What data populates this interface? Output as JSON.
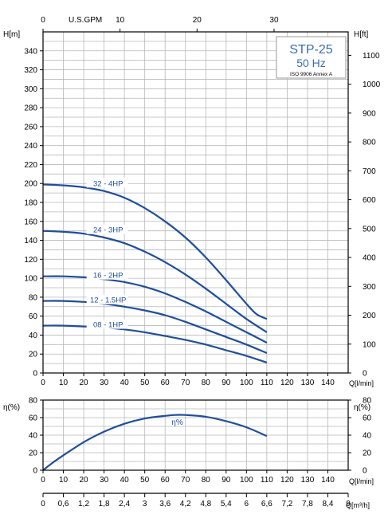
{
  "colors": {
    "curve": "#1f4e9c",
    "grid": "#b8b8b8",
    "axis": "#000000",
    "box_text": "#3a6cb5"
  },
  "info_box": {
    "model": "STP-25",
    "freq": "50 Hz",
    "standard": "ISO 9906 Annex A"
  },
  "chart_data": [
    {
      "type": "line",
      "panel": "head",
      "ylabel_left": "H[m]",
      "ylabel_right": "H[ft]",
      "xlabel": "Q[l/min]",
      "top_axis_label": "U.S.GPM",
      "xlim": [
        0,
        150
      ],
      "ylim": [
        0,
        360
      ],
      "x_ticks": [
        0,
        10,
        20,
        30,
        40,
        50,
        60,
        70,
        80,
        90,
        100,
        110,
        120,
        130,
        140
      ],
      "y_ticks": [
        0,
        20,
        40,
        60,
        80,
        100,
        120,
        140,
        160,
        180,
        200,
        220,
        240,
        260,
        280,
        300,
        320,
        340
      ],
      "gpm_ticks": [
        0,
        10,
        20,
        30
      ],
      "ft_ticks": [
        0,
        100,
        200,
        300,
        400,
        500,
        600,
        700,
        800,
        900,
        1000,
        1100
      ],
      "grid": true,
      "series": [
        {
          "name": "32 - 4HP",
          "x": [
            0,
            10,
            20,
            30,
            40,
            50,
            60,
            70,
            80,
            90,
            100,
            105,
            110
          ],
          "values": [
            199,
            198,
            196,
            192,
            185,
            174,
            160,
            143,
            122,
            98,
            73,
            62,
            57
          ]
        },
        {
          "name": "24 - 3HP",
          "x": [
            0,
            10,
            20,
            30,
            40,
            50,
            60,
            70,
            80,
            90,
            100,
            110
          ],
          "values": [
            150,
            149,
            147,
            143,
            137,
            128,
            117,
            104,
            89,
            73,
            57,
            43
          ]
        },
        {
          "name": "16 - 2HP",
          "x": [
            0,
            10,
            20,
            30,
            40,
            50,
            60,
            70,
            80,
            90,
            100,
            110
          ],
          "values": [
            102,
            102,
            101,
            99,
            96,
            91,
            84,
            75,
            65,
            54,
            43,
            32
          ]
        },
        {
          "name": "12 - 1.5HP",
          "x": [
            0,
            10,
            20,
            30,
            40,
            50,
            60,
            70,
            80,
            90,
            100,
            110
          ],
          "values": [
            76,
            76,
            75,
            73,
            70,
            66,
            61,
            54,
            46,
            38,
            30,
            21
          ]
        },
        {
          "name": "08 - 1HP",
          "x": [
            0,
            10,
            20,
            30,
            40,
            50,
            60,
            70,
            80,
            90,
            100,
            110
          ],
          "values": [
            50,
            50,
            49,
            48,
            46,
            43,
            39,
            35,
            30,
            24,
            18,
            11
          ]
        }
      ]
    },
    {
      "type": "line",
      "panel": "efficiency",
      "ylabel_left": "η(%)",
      "ylabel_right": "η(%)",
      "xlabel": "Q[l/min]",
      "xlim": [
        0,
        150
      ],
      "ylim": [
        0,
        80
      ],
      "x_ticks": [
        0,
        10,
        20,
        30,
        40,
        50,
        60,
        70,
        80,
        90,
        100,
        110,
        120,
        130,
        140
      ],
      "y_ticks": [
        0,
        20,
        40,
        60,
        80
      ],
      "grid": true,
      "series": [
        {
          "name": "η%",
          "x": [
            0,
            5,
            10,
            20,
            30,
            40,
            50,
            60,
            65,
            70,
            80,
            90,
            100,
            110
          ],
          "values": [
            0,
            9,
            17,
            32,
            44,
            53,
            59,
            62,
            63,
            63,
            61,
            56,
            49,
            39
          ]
        }
      ]
    },
    {
      "type": "axis",
      "panel": "flow_m3h",
      "xlabel": "Q[m³/h]",
      "xlim": [
        0,
        9
      ],
      "tick_labels": [
        "0",
        "0,6",
        "1,2",
        "1,8",
        "2,4",
        "3",
        "3,6",
        "4,2",
        "4,8",
        "5,4",
        "6",
        "6,6",
        "7,2",
        "7,8",
        "8,4",
        "9"
      ]
    }
  ]
}
